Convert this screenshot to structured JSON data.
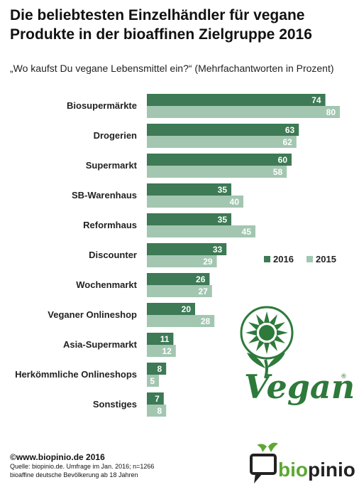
{
  "header": {
    "title": "Die beliebtesten Einzelhändler für vegane Produkte in der bioaffinen Zielgruppe 2016",
    "subtitle": "„Wo kaufst Du vegane Lebensmittel ein?“ (Mehrfachantworten in Prozent)"
  },
  "chart_data": {
    "type": "bar",
    "orientation": "horizontal",
    "title": "Die beliebtesten Einzelhändler für vegane Produkte in der bioaffinen Zielgruppe 2016",
    "subtitle": "„Wo kaufst Du vegane Lebensmittel ein?“ (Mehrfachantworten in Prozent)",
    "categories": [
      "Biosupermärkte",
      "Drogerien",
      "Supermarkt",
      "SB-Warenhaus",
      "Reformhaus",
      "Discounter",
      "Wochenmarkt",
      "Veganer Onlineshop",
      "Asia-Supermarkt",
      "Herkömmliche Onlineshops",
      "Sonstiges"
    ],
    "series": [
      {
        "name": "2016",
        "values": [
          74,
          63,
          60,
          35,
          35,
          33,
          26,
          20,
          11,
          8,
          7
        ],
        "color": "#3d7a55"
      },
      {
        "name": "2015",
        "values": [
          80,
          62,
          58,
          40,
          45,
          29,
          27,
          28,
          12,
          5,
          8
        ],
        "color": "#a3c6b1"
      }
    ],
    "xlim": [
      0,
      100
    ],
    "grid": false,
    "legend_position": "right-middle",
    "data_labels": true
  },
  "footer": {
    "copyright": "©www.biopinio.de  2016",
    "source_line1": "Quelle: biopinio.de. Umfrage im Jan. 2016; n=1266",
    "source_line2": "bioaffine deutsche Bevölkerung  ab 18 Jahren"
  },
  "logos": {
    "vegan_word": "Vegan",
    "vegan_registered": "®",
    "biopinio_bio": "bio",
    "biopinio_pinio": "pinio"
  },
  "colors": {
    "series_2016": "#3d7a55",
    "series_2015": "#a3c6b1",
    "logo_green": "#2d7a3a",
    "biopinio_green": "#5da832",
    "biopinio_dark": "#222222"
  }
}
